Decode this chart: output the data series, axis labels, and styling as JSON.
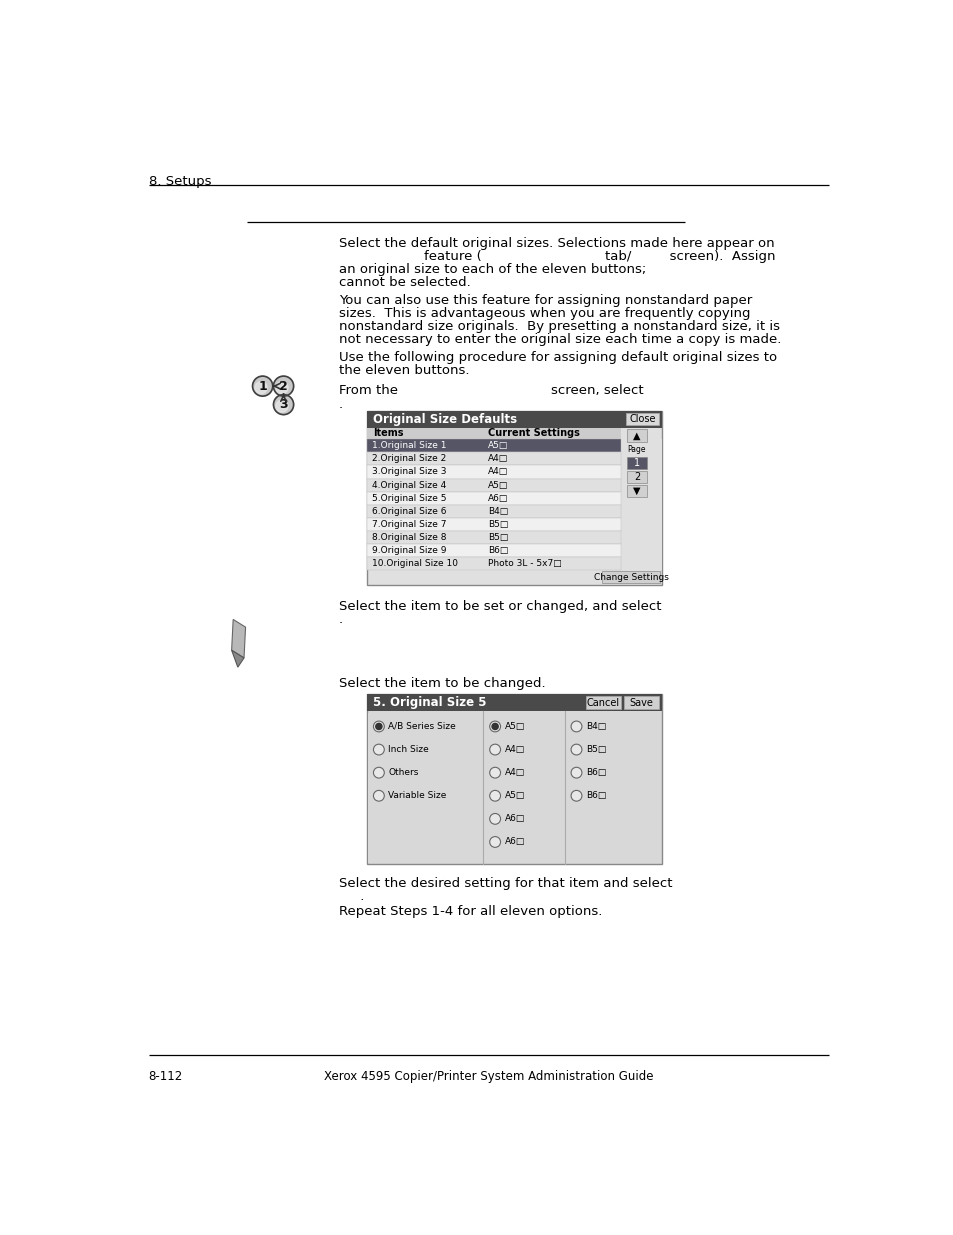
{
  "bg_color": "#ffffff",
  "header_text": "8. Setups",
  "footer_left": "8-112",
  "footer_center": "Xerox 4595 Copier/Printer System Administration Guide",
  "para1_line1": "Select the default original sizes. Selections made here appear on",
  "para1_line2": "                    feature (                             tab/         screen).  Assign",
  "para1_line3": "an original size to each of the eleven buttons;",
  "para1_line4": "cannot be selected.",
  "para2_line1": "You can also use this feature for assigning nonstandard paper",
  "para2_line2": "sizes.  This is advantageous when you are frequently copying",
  "para2_line3": "nonstandard size originals.  By presetting a nonstandard size, it is",
  "para2_line4": "not necessary to enter the original size each time a copy is made.",
  "para3_line1": "Use the following procedure for assigning default original sizes to",
  "para3_line2": "the eleven buttons.",
  "step1_text": "From the                                    screen, select",
  "step1_dot": ".",
  "step2_text": "Select the item to be set or changed, and select",
  "step2_dot": ".",
  "step3_text": "Select the item to be changed.",
  "step4_text": "Select the desired setting for that item and select",
  "step4_dot": "     .",
  "step5_text": "Repeat Steps 1-4 for all eleven options.",
  "table1_title": "Original Size Defaults",
  "table1_close_btn": "Close",
  "table1_col1": "Items",
  "table1_col2": "Current Settings",
  "table1_rows": [
    [
      "1.Original Size 1",
      "A5□"
    ],
    [
      "2.Original Size 2",
      "A4□"
    ],
    [
      "3.Original Size 3",
      "A4□"
    ],
    [
      "4.Original Size 4",
      "A5□"
    ],
    [
      "5.Original Size 5",
      "A6□"
    ],
    [
      "6.Original Size 6",
      "B4□"
    ],
    [
      "7.Original Size 7",
      "B5□"
    ],
    [
      "8.Original Size 8",
      "B5□"
    ],
    [
      "9.Original Size 9",
      "B6□"
    ],
    [
      "10.Original Size 10",
      "Photo 3L - 5x7□"
    ]
  ],
  "table1_page_label": "Page",
  "table1_page1": "1",
  "table1_page2": "2",
  "table1_change_btn": "Change Settings",
  "table2_title": "5. Original Size 5",
  "table2_cancel_btn": "Cancel",
  "table2_save_btn": "Save",
  "table2_options_left": [
    "A/B Series Size",
    "Inch Size",
    "Others",
    "Variable Size"
  ],
  "table2_options_col2": [
    "A5□",
    "A4□",
    "A4□",
    "A5□"
  ],
  "table2_options_col3": [
    "B4□",
    "B5□",
    "B6□",
    "B6□"
  ],
  "table2_extra_col2": [
    "A6□",
    "A6□"
  ],
  "font_size_body": 9.5,
  "font_size_small": 7.5,
  "font_size_header": 9.5,
  "font_size_footer": 8.5
}
